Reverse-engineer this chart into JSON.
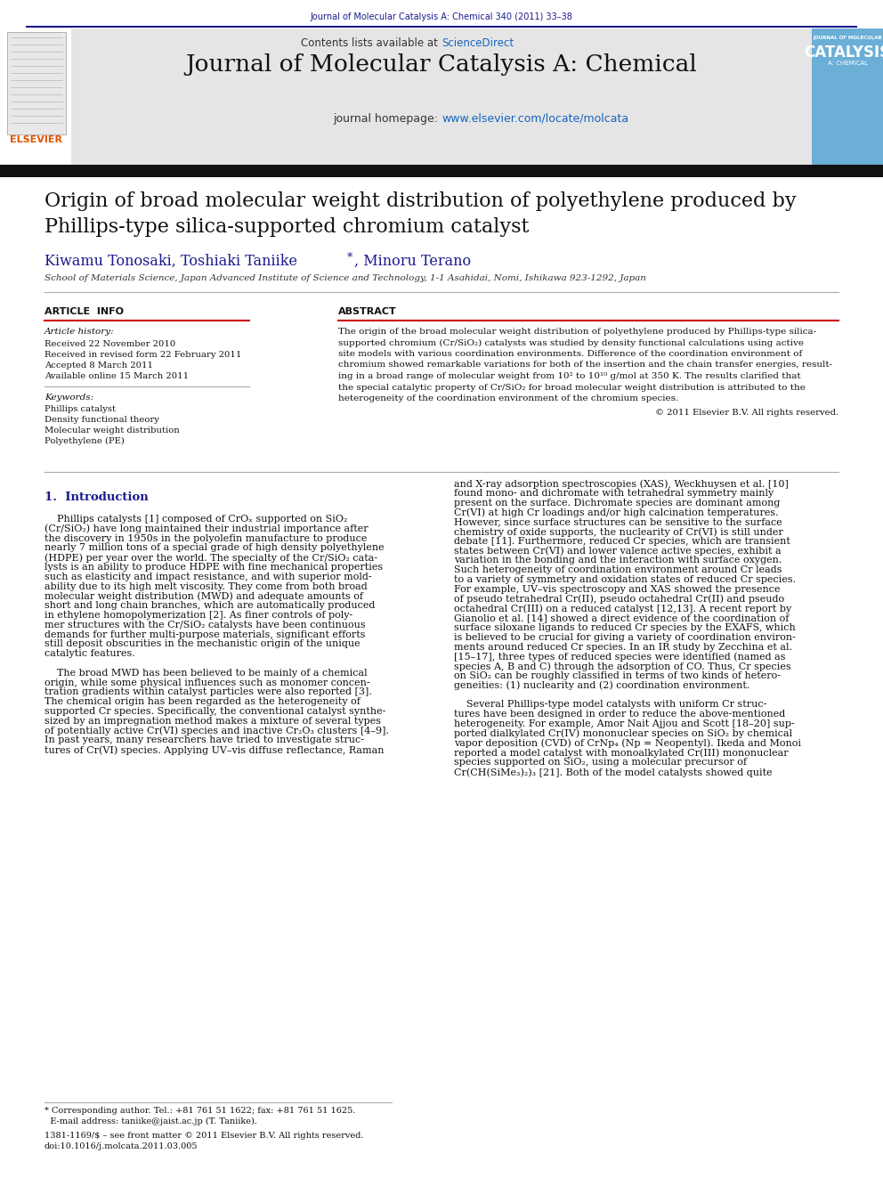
{
  "page_width": 9.92,
  "page_height": 13.23,
  "dpi": 100,
  "bg": "#ffffff",
  "journal_ref": "Journal of Molecular Catalysis A: Chemical 340 (2011) 33–38",
  "journal_ref_color": "#1a1a8c",
  "header_bg": "#e5e5e5",
  "header_title": "Journal of Molecular Catalysis A: Chemical",
  "contents_text": "Contents lists available at ",
  "sciencedirect": "ScienceDirect",
  "sciencedirect_color": "#1565c0",
  "homepage_label": "journal homepage: ",
  "homepage_url": "www.elsevier.com/locate/molcata",
  "homepage_url_color": "#1565c0",
  "elsevier_color": "#e65100",
  "dark_bar_color": "#111111",
  "cover_bg": "#6baed6",
  "article_title_line1": "Origin of broad molecular weight distribution of polyethylene produced by",
  "article_title_line2": "Phillips-type silica-supported chromium catalyst",
  "authors_line": "Kiwamu Tonosaki, Toshiaki Taniike",
  "authors_star": "*",
  "authors_rest": ", Minoru Terano",
  "authors_color": "#1a1a8c",
  "affiliation": "School of Materials Science, Japan Advanced Institute of Science and Technology, 1-1 Asahidai, Nomi, Ishikawa 923-1292, Japan",
  "accent_red": "#cc0000",
  "section_info": "ARTICLE  INFO",
  "section_abstract": "ABSTRACT",
  "art_hist_label": "Article history:",
  "art_hist_lines": [
    "Received 22 November 2010",
    "Received in revised form 22 February 2011",
    "Accepted 8 March 2011",
    "Available online 15 March 2011"
  ],
  "kw_label": "Keywords:",
  "keywords": [
    "Phillips catalyst",
    "Density functional theory",
    "Molecular weight distribution",
    "Polyethylene (PE)"
  ],
  "abstract_lines": [
    "The origin of the broad molecular weight distribution of polyethylene produced by Phillips-type silica-",
    "supported chromium (Cr/SiO₂) catalysts was studied by density functional calculations using active",
    "site models with various coordination environments. Difference of the coordination environment of",
    "chromium showed remarkable variations for both of the insertion and the chain transfer energies, result-",
    "ing in a broad range of molecular weight from 10² to 10¹⁰ g/mol at 350 K. The results clarified that",
    "the special catalytic property of Cr/SiO₂ for broad molecular weight distribution is attributed to the",
    "heterogeneity of the coordination environment of the chromium species."
  ],
  "copyright": "© 2011 Elsevier B.V. All rights reserved.",
  "intro_title": "1.  Introduction",
  "intro_title_color": "#1a1a8c",
  "left_col_lines": [
    "    Phillips catalysts [1] composed of CrOₓ supported on SiO₂",
    "(Cr/SiO₂) have long maintained their industrial importance after",
    "the discovery in 1950s in the polyolefin manufacture to produce",
    "nearly 7 million tons of a special grade of high density polyethylene",
    "(HDPE) per year over the world. The specialty of the Cr/SiO₂ cata-",
    "lysts is an ability to produce HDPE with fine mechanical properties",
    "such as elasticity and impact resistance, and with superior mold-",
    "ability due to its high melt viscosity. They come from both broad",
    "molecular weight distribution (MWD) and adequate amounts of",
    "short and long chain branches, which are automatically produced",
    "in ethylene homopolymerization [2]. As finer controls of poly-",
    "mer structures with the Cr/SiO₂ catalysts have been continuous",
    "demands for further multi-purpose materials, significant efforts",
    "still deposit obscurities in the mechanistic origin of the unique",
    "catalytic features.",
    "",
    "    The broad MWD has been believed to be mainly of a chemical",
    "origin, while some physical influences such as monomer concen-",
    "tration gradients within catalyst particles were also reported [3].",
    "The chemical origin has been regarded as the heterogeneity of",
    "supported Cr species. Specifically, the conventional catalyst synthe-",
    "sized by an impregnation method makes a mixture of several types",
    "of potentially active Cr(VI) species and inactive Cr₂O₃ clusters [4–9].",
    "In past years, many researchers have tried to investigate struc-",
    "tures of Cr(VI) species. Applying UV–vis diffuse reflectance, Raman"
  ],
  "right_col_lines_top": [
    "and X-ray adsorption spectroscopies (XAS), Weckhuysen et al. [10]",
    "found mono- and dichromate with tetrahedral symmetry mainly",
    "present on the surface. Dichromate species are dominant among",
    "Cr(VI) at high Cr loadings and/or high calcination temperatures.",
    "However, since surface structures can be sensitive to the surface",
    "chemistry of oxide supports, the nuclearity of Cr(VI) is still under",
    "debate [11]. Furthermore, reduced Cr species, which are transient",
    "states between Cr(VI) and lower valence active species, exhibit a",
    "variation in the bonding and the interaction with surface oxygen.",
    "Such heterogeneity of coordination environment around Cr leads",
    "to a variety of symmetry and oxidation states of reduced Cr species.",
    "For example, UV–vis spectroscopy and XAS showed the presence",
    "of pseudo tetrahedral Cr(II), pseudo octahedral Cr(II) and pseudo",
    "octahedral Cr(III) on a reduced catalyst [12,13]. A recent report by",
    "Gianolio et al. [14] showed a direct evidence of the coordination of",
    "surface siloxane ligands to reduced Cr species by the EXAFS, which",
    "is believed to be crucial for giving a variety of coordination environ-",
    "ments around reduced Cr species. In an IR study by Zecchina et al.",
    "[15–17], three types of reduced species were identified (named as",
    "species A, B and C) through the adsorption of CO. Thus, Cr species",
    "on SiO₂ can be roughly classified in terms of two kinds of hetero-",
    "geneities: (1) nuclearity and (2) coordination environment.",
    "",
    "    Several Phillips-type model catalysts with uniform Cr struc-",
    "tures have been designed in order to reduce the above-mentioned",
    "heterogeneity. For example, Amor Nait Ajjou and Scott [18–20] sup-",
    "ported dialkylated Cr(IV) mononuclear species on SiO₂ by chemical",
    "vapor deposition (CVD) of CrNp₄ (Np = Neopentyl). Ikeda and Monoi",
    "reported a model catalyst with monoalkylated Cr(III) mononuclear",
    "species supported on SiO₂, using a molecular precursor of",
    "Cr(CH(SiMe₃)₂)₃ [21]. Both of the model catalysts showed quite"
  ],
  "footnote1": "* Corresponding author. Tel.: +81 761 51 1622; fax: +81 761 51 1625.",
  "footnote2": "  E-mail address: taniike@jaist.ac.jp (T. Taniike).",
  "footnote3": "1381-1169/$ – see front matter © 2011 Elsevier B.V. All rights reserved.",
  "footnote4": "doi:10.1016/j.molcata.2011.03.005"
}
